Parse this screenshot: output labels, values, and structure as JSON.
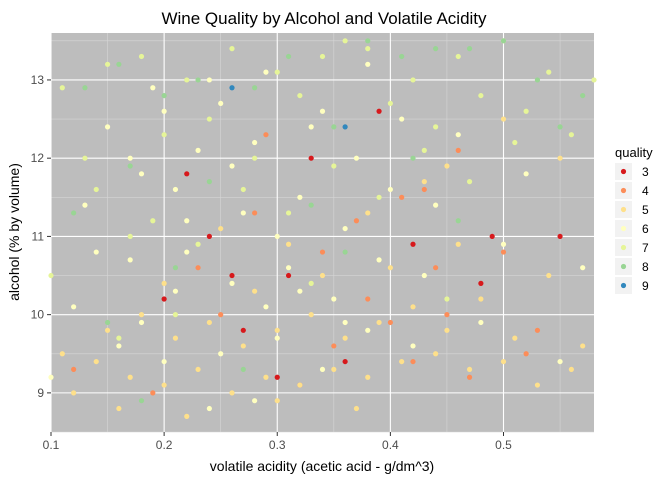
{
  "chart_data": {
    "type": "scatter",
    "title": "Wine Quality by Alcohol and Volatile Acidity",
    "xlabel": "volatile acidity (acetic acid - g/dm^3)",
    "ylabel": "alcohol (% by volume)",
    "xlim": [
      0.1,
      0.58
    ],
    "ylim": [
      8.5,
      13.6
    ],
    "x_ticks": [
      "0.1",
      "0.2",
      "0.3",
      "0.4",
      "0.5"
    ],
    "y_ticks": [
      "9",
      "10",
      "11",
      "12",
      "13"
    ],
    "grid": true,
    "panel_background": "#bdbdbd",
    "legend": {
      "title": "quality",
      "placement": "right",
      "items": [
        {
          "label": "3",
          "color": "#d7191c"
        },
        {
          "label": "4",
          "color": "#fc8d59"
        },
        {
          "label": "5",
          "color": "#fee08b"
        },
        {
          "label": "6",
          "color": "#ffffbf"
        },
        {
          "label": "7",
          "color": "#e6f598"
        },
        {
          "label": "8",
          "color": "#99d594"
        },
        {
          "label": "9",
          "color": "#3288bd"
        }
      ]
    },
    "series": [
      {
        "name": "3",
        "points": [
          [
            0.26,
            10.5
          ],
          [
            0.31,
            10.5
          ],
          [
            0.49,
            11.0
          ],
          [
            0.55,
            11.0
          ],
          [
            0.48,
            10.4
          ],
          [
            0.39,
            12.6
          ],
          [
            0.24,
            11.0
          ],
          [
            0.33,
            12.0
          ],
          [
            0.2,
            10.2
          ],
          [
            0.27,
            9.8
          ],
          [
            0.36,
            9.4
          ],
          [
            0.42,
            10.9
          ],
          [
            0.3,
            9.2
          ],
          [
            0.22,
            11.8
          ]
        ]
      },
      {
        "name": "4",
        "points": [
          [
            0.12,
            9.3
          ],
          [
            0.44,
            10.6
          ],
          [
            0.46,
            12.1
          ],
          [
            0.43,
            11.6
          ],
          [
            0.41,
            11.5
          ],
          [
            0.38,
            10.2
          ],
          [
            0.28,
            11.3
          ],
          [
            0.35,
            9.6
          ],
          [
            0.25,
            10.0
          ],
          [
            0.47,
            9.2
          ],
          [
            0.52,
            9.5
          ],
          [
            0.4,
            9.9
          ],
          [
            0.34,
            10.8
          ],
          [
            0.19,
            9.0
          ],
          [
            0.29,
            12.3
          ],
          [
            0.45,
            10.0
          ],
          [
            0.5,
            10.8
          ],
          [
            0.23,
            10.6
          ],
          [
            0.37,
            11.2
          ],
          [
            0.32,
            9.1
          ],
          [
            0.53,
            9.8
          ],
          [
            0.42,
            9.4
          ]
        ]
      },
      {
        "name": "5",
        "points": [
          [
            0.11,
            9.5
          ],
          [
            0.14,
            9.4
          ],
          [
            0.17,
            9.2
          ],
          [
            0.2,
            9.1
          ],
          [
            0.23,
            9.3
          ],
          [
            0.26,
            9.0
          ],
          [
            0.29,
            9.2
          ],
          [
            0.32,
            9.1
          ],
          [
            0.35,
            9.3
          ],
          [
            0.38,
            9.2
          ],
          [
            0.41,
            9.4
          ],
          [
            0.44,
            9.5
          ],
          [
            0.47,
            9.3
          ],
          [
            0.5,
            9.4
          ],
          [
            0.53,
            9.1
          ],
          [
            0.56,
            9.3
          ],
          [
            0.15,
            9.8
          ],
          [
            0.18,
            10.0
          ],
          [
            0.21,
            9.7
          ],
          [
            0.24,
            9.9
          ],
          [
            0.27,
            9.6
          ],
          [
            0.3,
            9.8
          ],
          [
            0.33,
            10.0
          ],
          [
            0.36,
            9.7
          ],
          [
            0.39,
            9.9
          ],
          [
            0.42,
            10.1
          ],
          [
            0.45,
            9.8
          ],
          [
            0.48,
            10.2
          ],
          [
            0.51,
            9.7
          ],
          [
            0.2,
            10.4
          ],
          [
            0.28,
            10.3
          ],
          [
            0.34,
            10.5
          ],
          [
            0.4,
            10.6
          ],
          [
            0.46,
            10.9
          ],
          [
            0.54,
            10.5
          ],
          [
            0.25,
            11.1
          ],
          [
            0.31,
            10.9
          ],
          [
            0.38,
            11.3
          ],
          [
            0.43,
            11.7
          ],
          [
            0.57,
            9.6
          ],
          [
            0.16,
            8.8
          ],
          [
            0.22,
            8.7
          ],
          [
            0.3,
            8.9
          ],
          [
            0.37,
            8.8
          ],
          [
            0.12,
            9.0
          ],
          [
            0.45,
            11.9
          ],
          [
            0.5,
            12.5
          ],
          [
            0.55,
            12.0
          ]
        ]
      },
      {
        "name": "6",
        "points": [
          [
            0.1,
            9.2
          ],
          [
            0.12,
            10.1
          ],
          [
            0.13,
            11.4
          ],
          [
            0.15,
            12.4
          ],
          [
            0.16,
            9.6
          ],
          [
            0.17,
            10.7
          ],
          [
            0.18,
            11.8
          ],
          [
            0.19,
            12.9
          ],
          [
            0.2,
            9.4
          ],
          [
            0.21,
            10.3
          ],
          [
            0.22,
            11.2
          ],
          [
            0.23,
            12.1
          ],
          [
            0.24,
            13.0
          ],
          [
            0.25,
            9.5
          ],
          [
            0.26,
            10.4
          ],
          [
            0.27,
            11.3
          ],
          [
            0.28,
            12.2
          ],
          [
            0.29,
            13.1
          ],
          [
            0.3,
            9.7
          ],
          [
            0.31,
            10.6
          ],
          [
            0.32,
            11.5
          ],
          [
            0.33,
            12.4
          ],
          [
            0.34,
            9.3
          ],
          [
            0.35,
            10.2
          ],
          [
            0.36,
            11.1
          ],
          [
            0.37,
            12.0
          ],
          [
            0.38,
            9.8
          ],
          [
            0.39,
            10.7
          ],
          [
            0.4,
            11.6
          ],
          [
            0.41,
            12.5
          ],
          [
            0.42,
            9.6
          ],
          [
            0.43,
            10.5
          ],
          [
            0.44,
            11.4
          ],
          [
            0.46,
            12.3
          ],
          [
            0.48,
            9.9
          ],
          [
            0.5,
            10.9
          ],
          [
            0.52,
            11.8
          ],
          [
            0.55,
            9.4
          ],
          [
            0.57,
            10.6
          ],
          [
            0.14,
            10.8
          ],
          [
            0.18,
            9.9
          ],
          [
            0.22,
            10.8
          ],
          [
            0.26,
            11.9
          ],
          [
            0.3,
            11.0
          ],
          [
            0.34,
            12.6
          ],
          [
            0.38,
            13.2
          ],
          [
            0.2,
            12.6
          ],
          [
            0.24,
            8.8
          ],
          [
            0.28,
            8.9
          ],
          [
            0.32,
            10.3
          ],
          [
            0.36,
            9.9
          ],
          [
            0.25,
            12.7
          ],
          [
            0.17,
            12.0
          ],
          [
            0.21,
            11.6
          ],
          [
            0.29,
            10.1
          ]
        ]
      },
      {
        "name": "7",
        "points": [
          [
            0.1,
            10.5
          ],
          [
            0.11,
            12.9
          ],
          [
            0.13,
            12.0
          ],
          [
            0.15,
            13.2
          ],
          [
            0.17,
            11.0
          ],
          [
            0.18,
            13.3
          ],
          [
            0.2,
            12.3
          ],
          [
            0.22,
            13.0
          ],
          [
            0.24,
            12.5
          ],
          [
            0.26,
            13.4
          ],
          [
            0.28,
            12.0
          ],
          [
            0.3,
            13.1
          ],
          [
            0.32,
            12.8
          ],
          [
            0.34,
            13.3
          ],
          [
            0.36,
            13.5
          ],
          [
            0.38,
            13.4
          ],
          [
            0.4,
            12.7
          ],
          [
            0.42,
            13.0
          ],
          [
            0.44,
            12.4
          ],
          [
            0.46,
            13.3
          ],
          [
            0.48,
            12.8
          ],
          [
            0.5,
            13.5
          ],
          [
            0.52,
            12.6
          ],
          [
            0.54,
            13.1
          ],
          [
            0.56,
            12.3
          ],
          [
            0.58,
            13.0
          ],
          [
            0.14,
            11.6
          ],
          [
            0.19,
            11.2
          ],
          [
            0.23,
            10.9
          ],
          [
            0.27,
            11.6
          ],
          [
            0.31,
            11.3
          ],
          [
            0.35,
            11.9
          ],
          [
            0.39,
            11.5
          ],
          [
            0.43,
            12.1
          ],
          [
            0.47,
            11.7
          ],
          [
            0.51,
            12.2
          ],
          [
            0.16,
            9.7
          ],
          [
            0.21,
            10.0
          ],
          [
            0.33,
            10.4
          ],
          [
            0.45,
            10.2
          ]
        ]
      },
      {
        "name": "8",
        "points": [
          [
            0.13,
            12.9
          ],
          [
            0.16,
            13.2
          ],
          [
            0.2,
            12.8
          ],
          [
            0.23,
            13.0
          ],
          [
            0.28,
            12.9
          ],
          [
            0.31,
            13.3
          ],
          [
            0.35,
            12.4
          ],
          [
            0.38,
            13.5
          ],
          [
            0.41,
            13.3
          ],
          [
            0.44,
            13.4
          ],
          [
            0.47,
            13.4
          ],
          [
            0.5,
            13.5
          ],
          [
            0.53,
            13.0
          ],
          [
            0.55,
            12.4
          ],
          [
            0.57,
            12.8
          ],
          [
            0.17,
            11.9
          ],
          [
            0.24,
            11.7
          ],
          [
            0.33,
            11.4
          ],
          [
            0.42,
            12.0
          ],
          [
            0.15,
            9.9
          ],
          [
            0.21,
            10.6
          ],
          [
            0.36,
            10.8
          ],
          [
            0.46,
            11.2
          ],
          [
            0.18,
            8.9
          ],
          [
            0.27,
            9.3
          ],
          [
            0.12,
            11.3
          ]
        ]
      },
      {
        "name": "9",
        "points": [
          [
            0.26,
            12.9
          ],
          [
            0.36,
            12.4
          ]
        ]
      }
    ]
  }
}
